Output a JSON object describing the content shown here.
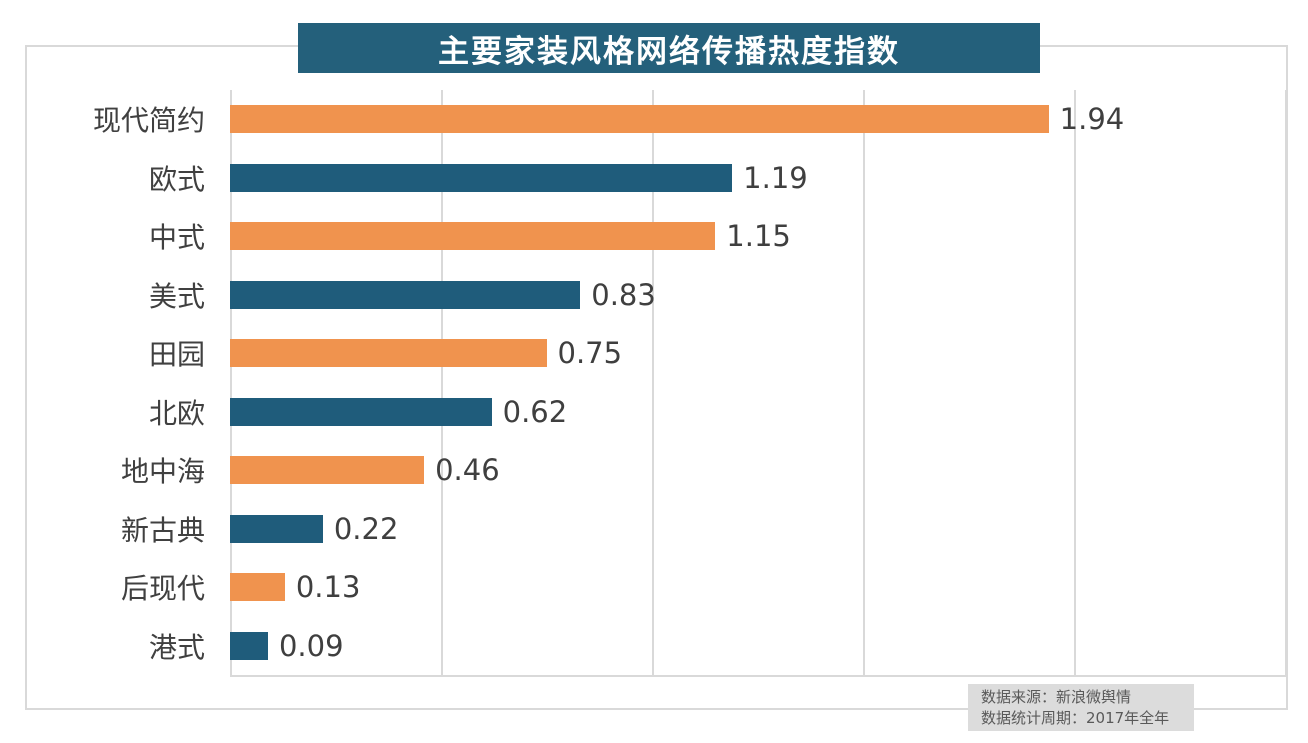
{
  "title": "主要家装风格网络传播热度指数",
  "source": {
    "line1": "数据来源：新浪微舆情",
    "line2": "数据统计周期：2017年全年"
  },
  "colors": {
    "title_bg": "#24607B",
    "title_text": "#FFFFFF",
    "grid": "#D9D9D9",
    "frame": "#D9D9D9",
    "category_label": "#404040",
    "value_label": "#3F3F3F",
    "source_bg": "#DCDCDC",
    "source_text": "#595959",
    "bar_orange": "#F0934E",
    "bar_teal": "#1F5C7B"
  },
  "chart_data": {
    "type": "bar",
    "orientation": "horizontal",
    "title": "主要家装风格网络传播热度指数",
    "categories": [
      "现代简约",
      "欧式",
      "中式",
      "美式",
      "田园",
      "北欧",
      "地中海",
      "新古典",
      "后现代",
      "港式"
    ],
    "values": [
      1.94,
      1.19,
      1.15,
      0.83,
      0.75,
      0.62,
      0.46,
      0.22,
      0.13,
      0.09
    ],
    "value_labels": [
      "1.94",
      "1.19",
      "1.15",
      "0.83",
      "0.75",
      "0.62",
      "0.46",
      "0.22",
      "0.13",
      "0.09"
    ],
    "xlabel": "",
    "ylabel": "",
    "xlim": [
      0,
      2.5
    ],
    "gridline_step": 0.5,
    "grid": true,
    "legend": false,
    "bar_colors_alternate": [
      "#F0934E",
      "#1F5C7B"
    ],
    "data_labels": true,
    "source_note": [
      "数据来源：新浪微舆情",
      "数据统计周期：2017年全年"
    ]
  }
}
